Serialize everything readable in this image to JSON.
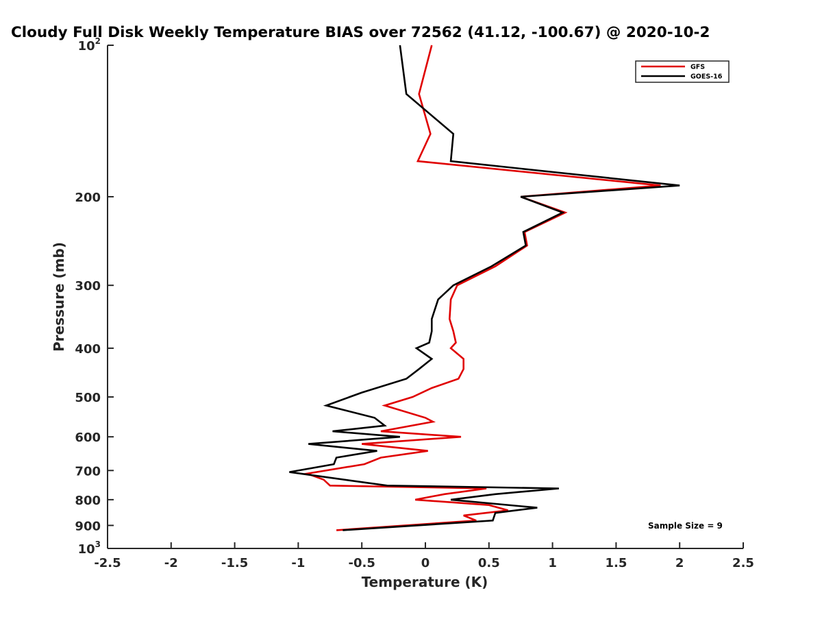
{
  "chart_data": {
    "type": "line",
    "title": "Cloudy Full Disk Weekly Temperature BIAS over 72562 (41.12, -100.67) @ 2020-10-2",
    "xlabel": "Temperature (K)",
    "ylabel": "Pressure (mb)",
    "xlim": [
      -2.5,
      2.5
    ],
    "ylim": [
      100,
      1000
    ],
    "y_scale": "log",
    "y_reversed": true,
    "x_ticks": [
      -2.5,
      -2,
      -1.5,
      -1,
      -0.5,
      0,
      0.5,
      1,
      1.5,
      2,
      2.5
    ],
    "x_tick_labels": [
      "-2.5",
      "-2",
      "-1.5",
      "-1",
      "-0.5",
      "0",
      "0.5",
      "1",
      "1.5",
      "2",
      "2.5"
    ],
    "y_ticks": [
      {
        "p": 100,
        "label": "10",
        "sup": "2"
      },
      {
        "p": 200,
        "label": "200"
      },
      {
        "p": 300,
        "label": "300"
      },
      {
        "p": 400,
        "label": "400"
      },
      {
        "p": 500,
        "label": "500"
      },
      {
        "p": 600,
        "label": "600"
      },
      {
        "p": 700,
        "label": "700"
      },
      {
        "p": 800,
        "label": "800"
      },
      {
        "p": 900,
        "label": "900"
      },
      {
        "p": 1000,
        "label": "10",
        "sup": "3"
      }
    ],
    "grid": false,
    "legend_position": "top-right",
    "annotation": "Sample Size = 9",
    "series": [
      {
        "name": "GFS",
        "color": "#e00000",
        "points": [
          [
            0.05,
            100
          ],
          [
            -0.05,
            125
          ],
          [
            0.04,
            150
          ],
          [
            -0.06,
            170
          ],
          [
            1.85,
            190
          ],
          [
            0.75,
            200
          ],
          [
            1.1,
            215
          ],
          [
            0.78,
            235
          ],
          [
            0.8,
            250
          ],
          [
            0.55,
            275
          ],
          [
            0.25,
            300
          ],
          [
            0.2,
            320
          ],
          [
            0.19,
            350
          ],
          [
            0.22,
            370
          ],
          [
            0.24,
            390
          ],
          [
            0.2,
            400
          ],
          [
            0.3,
            420
          ],
          [
            0.3,
            440
          ],
          [
            0.26,
            460
          ],
          [
            0.05,
            480
          ],
          [
            -0.1,
            500
          ],
          [
            -0.32,
            520
          ],
          [
            0.0,
            550
          ],
          [
            0.06,
            560
          ],
          [
            -0.35,
            585
          ],
          [
            0.28,
            600
          ],
          [
            -0.5,
            620
          ],
          [
            0.02,
            640
          ],
          [
            -0.35,
            660
          ],
          [
            -0.48,
            680
          ],
          [
            -0.93,
            710
          ],
          [
            -0.8,
            730
          ],
          [
            -0.75,
            750
          ],
          [
            0.48,
            760
          ],
          [
            0.15,
            780
          ],
          [
            -0.08,
            800
          ],
          [
            0.5,
            820
          ],
          [
            0.65,
            840
          ],
          [
            0.3,
            860
          ],
          [
            0.4,
            880
          ],
          [
            -0.7,
            920
          ]
        ]
      },
      {
        "name": "GOES-16",
        "color": "#000000",
        "points": [
          [
            -0.2,
            100
          ],
          [
            -0.15,
            125
          ],
          [
            0.22,
            150
          ],
          [
            0.2,
            170
          ],
          [
            2.0,
            190
          ],
          [
            0.75,
            200
          ],
          [
            1.08,
            215
          ],
          [
            0.77,
            235
          ],
          [
            0.79,
            250
          ],
          [
            0.52,
            275
          ],
          [
            0.22,
            300
          ],
          [
            0.1,
            320
          ],
          [
            0.05,
            350
          ],
          [
            0.05,
            370
          ],
          [
            0.03,
            390
          ],
          [
            -0.07,
            400
          ],
          [
            0.05,
            420
          ],
          [
            -0.05,
            440
          ],
          [
            -0.15,
            460
          ],
          [
            -0.5,
            490
          ],
          [
            -0.78,
            520
          ],
          [
            -0.4,
            550
          ],
          [
            -0.32,
            570
          ],
          [
            -0.73,
            585
          ],
          [
            -0.2,
            600
          ],
          [
            -0.92,
            620
          ],
          [
            -0.38,
            640
          ],
          [
            -0.7,
            660
          ],
          [
            -0.72,
            680
          ],
          [
            -1.07,
            705
          ],
          [
            -0.3,
            750
          ],
          [
            1.05,
            760
          ],
          [
            0.55,
            780
          ],
          [
            0.2,
            800
          ],
          [
            0.88,
            830
          ],
          [
            0.55,
            850
          ],
          [
            0.53,
            880
          ],
          [
            -0.65,
            920
          ]
        ]
      }
    ]
  }
}
